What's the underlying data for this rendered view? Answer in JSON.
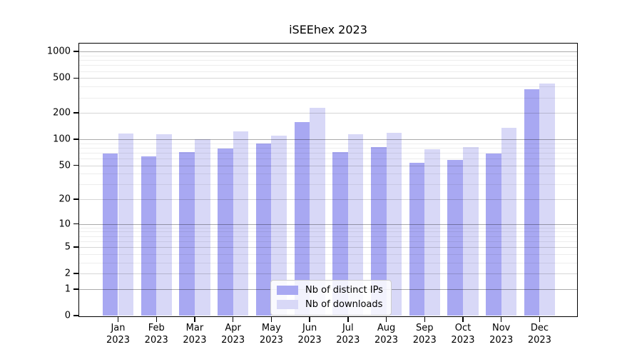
{
  "title": "iSEEhex 2023",
  "chart_data": {
    "type": "bar",
    "title": "iSEEhex 2023",
    "categories": [
      "Jan 2023",
      "Feb 2023",
      "Mar 2023",
      "Apr 2023",
      "May 2023",
      "Jun 2023",
      "Jul 2023",
      "Aug 2023",
      "Sep 2023",
      "Oct 2023",
      "Nov 2023",
      "Dec 2023"
    ],
    "series": [
      {
        "key": "distinct-ips",
        "name": "Nb of distinct IPs",
        "color": "#a8a8f2",
        "values": [
          68,
          63,
          71,
          78,
          89,
          158,
          71,
          81,
          53,
          58,
          69,
          375
        ]
      },
      {
        "key": "downloads",
        "name": "Nb of downloads",
        "color": "#d8d8f7",
        "values": [
          116,
          114,
          100,
          124,
          109,
          228,
          113,
          119,
          76,
          81,
          136,
          435
        ]
      }
    ],
    "xlabel": "",
    "ylabel": "",
    "y_scale": "log10(1+x)",
    "y_ticks": [
      0,
      1,
      2,
      5,
      10,
      20,
      50,
      100,
      200,
      500,
      1000
    ],
    "ylim": [
      0,
      1300
    ],
    "grid": true,
    "legend_position": "lower center"
  },
  "colors": {
    "bar_distinct_ips": "#a8a8f2",
    "bar_downloads": "#d8d8f7",
    "grid_major": "#ababab",
    "grid_mid": "#d6d6d6",
    "grid_minor": "#ededed",
    "spine": "#000000",
    "background": "#ffffff"
  }
}
